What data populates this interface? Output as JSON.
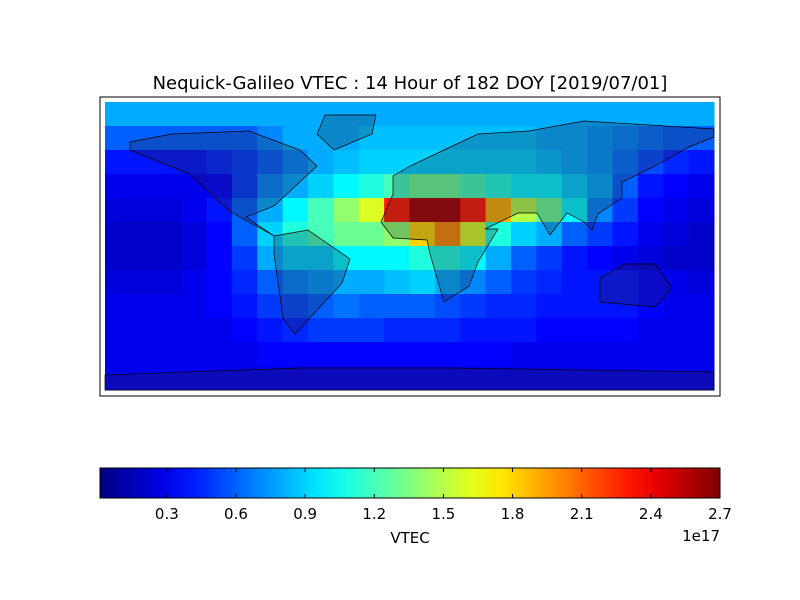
{
  "chart_data": {
    "type": "heatmap",
    "title": "Nequick-Galileo VTEC : 14 Hour of 182 DOY [2019/07/01]",
    "z": [
      [
        0.8,
        0.8,
        0.8,
        0.8,
        0.8,
        0.8,
        0.8,
        0.8,
        0.8,
        0.8,
        0.8,
        0.8,
        0.8,
        0.8,
        0.8,
        0.8,
        0.8,
        0.8,
        0.8,
        0.8,
        0.8,
        0.8,
        0.8,
        0.8
      ],
      [
        0.6,
        0.6,
        0.6,
        0.6,
        0.6,
        0.6,
        0.7,
        0.8,
        0.8,
        0.8,
        0.85,
        0.85,
        0.85,
        0.85,
        0.85,
        0.85,
        0.85,
        0.8,
        0.8,
        0.75,
        0.7,
        0.65,
        0.6,
        0.6
      ],
      [
        0.4,
        0.4,
        0.4,
        0.4,
        0.45,
        0.5,
        0.6,
        0.7,
        0.8,
        0.85,
        0.9,
        0.9,
        0.9,
        0.9,
        0.9,
        0.9,
        0.9,
        0.85,
        0.8,
        0.75,
        0.65,
        0.55,
        0.45,
        0.4
      ],
      [
        0.3,
        0.3,
        0.3,
        0.3,
        0.35,
        0.5,
        0.7,
        0.8,
        0.9,
        1.0,
        1.1,
        1.2,
        1.3,
        1.3,
        1.2,
        1.1,
        1.0,
        1.0,
        0.9,
        0.8,
        0.6,
        0.4,
        0.35,
        0.3
      ],
      [
        0.25,
        0.25,
        0.25,
        0.3,
        0.4,
        0.6,
        0.8,
        1.0,
        1.2,
        1.4,
        1.6,
        2.3,
        2.6,
        2.6,
        2.3,
        1.9,
        1.5,
        1.3,
        1.0,
        0.7,
        0.5,
        0.35,
        0.3,
        0.25
      ],
      [
        0.2,
        0.2,
        0.2,
        0.25,
        0.35,
        0.6,
        0.9,
        1.1,
        1.2,
        1.3,
        1.3,
        1.4,
        1.8,
        2.0,
        1.6,
        1.1,
        0.9,
        0.8,
        0.6,
        0.5,
        0.4,
        0.3,
        0.25,
        0.2
      ],
      [
        0.2,
        0.2,
        0.2,
        0.25,
        0.35,
        0.5,
        0.8,
        0.9,
        0.9,
        1.0,
        1.0,
        1.0,
        1.1,
        1.1,
        1.0,
        0.8,
        0.6,
        0.5,
        0.4,
        0.35,
        0.3,
        0.25,
        0.2,
        0.2
      ],
      [
        0.25,
        0.25,
        0.25,
        0.3,
        0.35,
        0.45,
        0.6,
        0.7,
        0.75,
        0.8,
        0.8,
        0.85,
        0.9,
        0.8,
        0.7,
        0.6,
        0.5,
        0.45,
        0.4,
        0.4,
        0.4,
        0.35,
        0.3,
        0.25
      ],
      [
        0.3,
        0.3,
        0.3,
        0.3,
        0.35,
        0.4,
        0.5,
        0.55,
        0.6,
        0.65,
        0.6,
        0.6,
        0.6,
        0.55,
        0.5,
        0.45,
        0.45,
        0.4,
        0.4,
        0.4,
        0.4,
        0.35,
        0.3,
        0.3
      ],
      [
        0.3,
        0.3,
        0.3,
        0.3,
        0.3,
        0.35,
        0.4,
        0.45,
        0.5,
        0.5,
        0.5,
        0.45,
        0.45,
        0.45,
        0.4,
        0.4,
        0.4,
        0.35,
        0.35,
        0.35,
        0.35,
        0.3,
        0.3,
        0.3
      ],
      [
        0.3,
        0.3,
        0.3,
        0.3,
        0.3,
        0.3,
        0.35,
        0.35,
        0.35,
        0.35,
        0.35,
        0.35,
        0.35,
        0.35,
        0.35,
        0.35,
        0.3,
        0.3,
        0.3,
        0.3,
        0.3,
        0.3,
        0.3,
        0.3
      ],
      [
        0.3,
        0.3,
        0.3,
        0.3,
        0.3,
        0.3,
        0.3,
        0.3,
        0.3,
        0.3,
        0.3,
        0.3,
        0.3,
        0.3,
        0.3,
        0.3,
        0.3,
        0.3,
        0.3,
        0.3,
        0.3,
        0.3,
        0.3,
        0.3
      ]
    ],
    "colormap": "jet",
    "colorbar": {
      "lim": [
        0.01,
        2.7
      ],
      "ticks": [
        0.3,
        0.6,
        0.9,
        1.2,
        1.5,
        1.8,
        2.1,
        2.4,
        2.7
      ],
      "label": "VTEC",
      "offset_label": "1e17"
    }
  }
}
